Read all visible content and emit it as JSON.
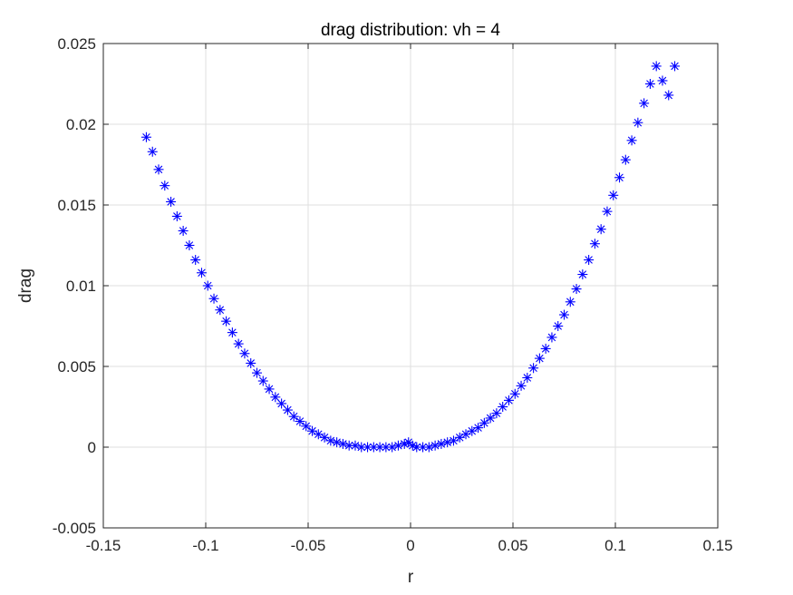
{
  "chart_data": {
    "type": "scatter",
    "title": "drag distribution: vh = 4",
    "xlabel": "r",
    "ylabel": "drag",
    "xlim": [
      -0.15,
      0.15
    ],
    "ylim": [
      -0.005,
      0.025
    ],
    "xticks": [
      -0.15,
      -0.1,
      -0.05,
      0,
      0.05,
      0.1,
      0.15
    ],
    "xtick_labels": [
      "-0.15",
      "-0.1",
      "-0.05",
      "0",
      "0.05",
      "0.1",
      "0.15"
    ],
    "yticks": [
      -0.005,
      0,
      0.005,
      0.01,
      0.015,
      0.02,
      0.025
    ],
    "ytick_labels": [
      "-0.005",
      "0",
      "0.005",
      "0.01",
      "0.015",
      "0.02",
      "0.025"
    ],
    "grid": true,
    "marker": "asterisk",
    "marker_color": "#0000ff",
    "series": [
      {
        "x": [
          -0.129,
          -0.126,
          -0.123,
          -0.12,
          -0.117,
          -0.114,
          -0.111,
          -0.108,
          -0.105,
          -0.102,
          -0.099,
          -0.096,
          -0.093,
          -0.09,
          -0.087,
          -0.084,
          -0.081,
          -0.078,
          -0.075,
          -0.072,
          -0.069,
          -0.066,
          -0.063,
          -0.06,
          -0.057,
          -0.054,
          -0.051,
          -0.048,
          -0.045,
          -0.042,
          -0.039,
          -0.036,
          -0.033,
          -0.03,
          -0.027,
          -0.024,
          -0.021,
          -0.018,
          -0.015,
          -0.012,
          -0.009,
          -0.006,
          -0.003,
          -0.001,
          0.001,
          0.003,
          0.006,
          0.009,
          0.012,
          0.015,
          0.018,
          0.021,
          0.024,
          0.027,
          0.03,
          0.033,
          0.036,
          0.039,
          0.042,
          0.045,
          0.048,
          0.051,
          0.054,
          0.057,
          0.06,
          0.063,
          0.066,
          0.069,
          0.072,
          0.075,
          0.078,
          0.081,
          0.084,
          0.087,
          0.09,
          0.093,
          0.096,
          0.099,
          0.102,
          0.105,
          0.108,
          0.111,
          0.114,
          0.117,
          0.12,
          0.123,
          0.126,
          0.129
        ],
        "y": [
          0.0192,
          0.0183,
          0.0172,
          0.0162,
          0.0152,
          0.0143,
          0.0134,
          0.0125,
          0.0116,
          0.0108,
          0.01,
          0.0092,
          0.0085,
          0.0078,
          0.0071,
          0.0064,
          0.0058,
          0.0052,
          0.0046,
          0.0041,
          0.0036,
          0.0031,
          0.0027,
          0.0023,
          0.0019,
          0.0016,
          0.0013,
          0.001,
          0.0008,
          0.0006,
          0.0004,
          0.0003,
          0.0002,
          0.0001,
          0.0001,
          0.0,
          0.0,
          0.0,
          0.0,
          0.0,
          0.0,
          0.0001,
          0.0002,
          0.0003,
          0.0001,
          0.0,
          0.0,
          0.0,
          0.0001,
          0.0002,
          0.0003,
          0.0004,
          0.0006,
          0.0008,
          0.001,
          0.0012,
          0.0015,
          0.0018,
          0.0021,
          0.0025,
          0.0029,
          0.0033,
          0.0038,
          0.0043,
          0.0049,
          0.0055,
          0.0061,
          0.0068,
          0.0075,
          0.0082,
          0.009,
          0.0098,
          0.0107,
          0.0116,
          0.0126,
          0.0135,
          0.0146,
          0.0156,
          0.0167,
          0.0178,
          0.019,
          0.0201,
          0.0213,
          0.0225,
          0.0236,
          0.0227,
          0.0218,
          0.0236
        ]
      }
    ]
  }
}
